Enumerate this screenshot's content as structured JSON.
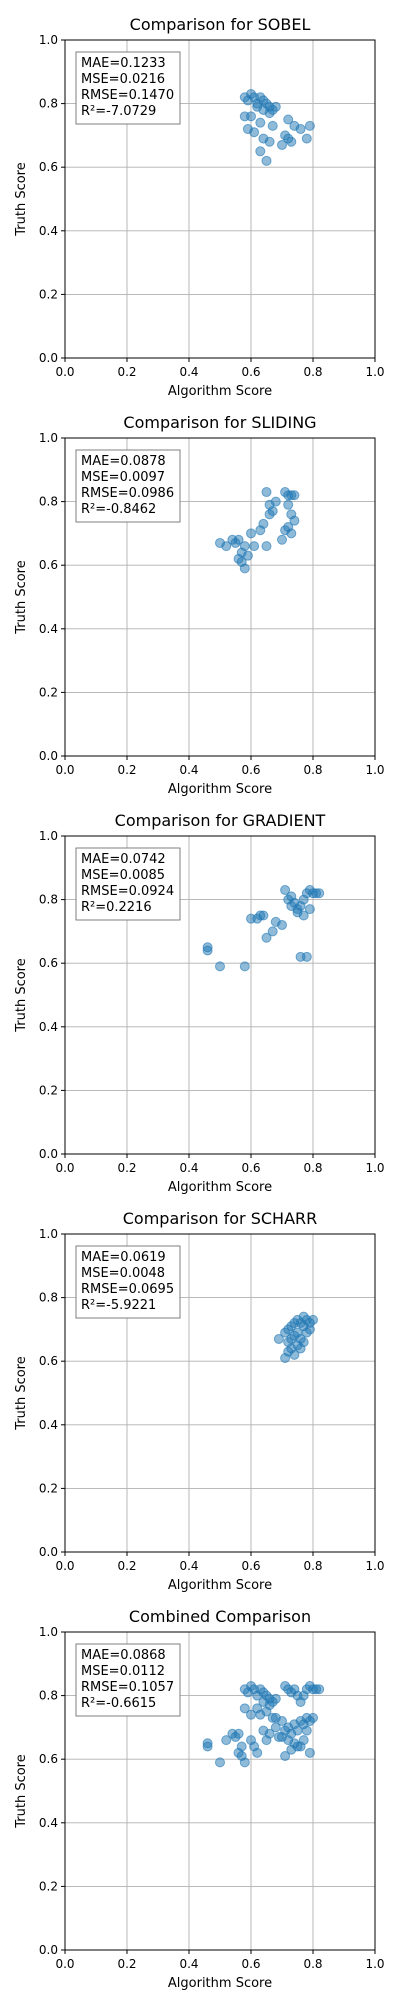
{
  "chart_data": [
    {
      "type": "scatter",
      "title": "Comparison for SOBEL",
      "xlabel": "Algorithm Score",
      "ylabel": "Truth Score",
      "xlim": [
        0,
        1
      ],
      "ylim": [
        0,
        1
      ],
      "xticks": [
        "0.0",
        "0.2",
        "0.4",
        "0.6",
        "0.8",
        "1.0"
      ],
      "yticks": [
        "0.0",
        "0.2",
        "0.4",
        "0.6",
        "0.8",
        "1.0"
      ],
      "grid": true,
      "stats": [
        "MAE=0.1233",
        "MSE=0.0216",
        "RMSE=0.1470",
        "R²=-7.0729"
      ],
      "x": [
        0.58,
        0.59,
        0.6,
        0.61,
        0.62,
        0.63,
        0.64,
        0.65,
        0.66,
        0.67,
        0.68,
        0.62,
        0.64,
        0.66,
        0.58,
        0.6,
        0.63,
        0.67,
        0.59,
        0.61,
        0.64,
        0.66,
        0.72,
        0.74,
        0.76,
        0.79,
        0.71,
        0.73,
        0.7,
        0.72,
        0.78,
        0.63,
        0.65
      ],
      "y": [
        0.82,
        0.81,
        0.83,
        0.82,
        0.8,
        0.82,
        0.81,
        0.8,
        0.79,
        0.78,
        0.79,
        0.79,
        0.78,
        0.77,
        0.76,
        0.76,
        0.74,
        0.73,
        0.72,
        0.71,
        0.69,
        0.68,
        0.75,
        0.73,
        0.72,
        0.73,
        0.7,
        0.68,
        0.67,
        0.69,
        0.69,
        0.65,
        0.62
      ]
    },
    {
      "type": "scatter",
      "title": "Comparison for SLIDING",
      "xlabel": "Algorithm Score",
      "ylabel": "Truth Score",
      "xlim": [
        0,
        1
      ],
      "ylim": [
        0,
        1
      ],
      "xticks": [
        "0.0",
        "0.2",
        "0.4",
        "0.6",
        "0.8",
        "1.0"
      ],
      "yticks": [
        "0.0",
        "0.2",
        "0.4",
        "0.6",
        "0.8",
        "1.0"
      ],
      "grid": true,
      "stats": [
        "MAE=0.0878",
        "MSE=0.0097",
        "RMSE=0.0986",
        "R²=-0.8462"
      ],
      "x": [
        0.5,
        0.52,
        0.54,
        0.55,
        0.56,
        0.57,
        0.58,
        0.56,
        0.59,
        0.61,
        0.58,
        0.57,
        0.6,
        0.63,
        0.64,
        0.66,
        0.67,
        0.66,
        0.68,
        0.65,
        0.65,
        0.71,
        0.72,
        0.73,
        0.74,
        0.72,
        0.73,
        0.74,
        0.71,
        0.73,
        0.72,
        0.7
      ],
      "y": [
        0.67,
        0.66,
        0.68,
        0.67,
        0.68,
        0.64,
        0.66,
        0.62,
        0.63,
        0.66,
        0.59,
        0.61,
        0.7,
        0.71,
        0.73,
        0.76,
        0.77,
        0.79,
        0.8,
        0.83,
        0.66,
        0.83,
        0.82,
        0.82,
        0.82,
        0.79,
        0.76,
        0.74,
        0.71,
        0.7,
        0.72,
        0.68
      ]
    },
    {
      "type": "scatter",
      "title": "Comparison for GRADIENT",
      "xlabel": "Algorithm Score",
      "ylabel": "Truth Score",
      "xlim": [
        0,
        1
      ],
      "ylim": [
        0,
        1
      ],
      "xticks": [
        "0.0",
        "0.2",
        "0.4",
        "0.6",
        "0.8",
        "1.0"
      ],
      "yticks": [
        "0.0",
        "0.2",
        "0.4",
        "0.6",
        "0.8",
        "1.0"
      ],
      "grid": true,
      "stats": [
        "MAE=0.0742",
        "MSE=0.0085",
        "RMSE=0.0924",
        "R²=0.2216"
      ],
      "x": [
        0.46,
        0.46,
        0.5,
        0.58,
        0.6,
        0.62,
        0.63,
        0.64,
        0.65,
        0.67,
        0.68,
        0.7,
        0.71,
        0.72,
        0.73,
        0.74,
        0.75,
        0.76,
        0.77,
        0.78,
        0.79,
        0.8,
        0.81,
        0.82,
        0.73,
        0.75,
        0.77,
        0.79,
        0.76,
        0.78
      ],
      "y": [
        0.65,
        0.64,
        0.59,
        0.59,
        0.74,
        0.74,
        0.75,
        0.75,
        0.68,
        0.7,
        0.73,
        0.72,
        0.83,
        0.8,
        0.81,
        0.79,
        0.77,
        0.78,
        0.8,
        0.82,
        0.83,
        0.82,
        0.82,
        0.82,
        0.78,
        0.76,
        0.75,
        0.77,
        0.62,
        0.62
      ]
    },
    {
      "type": "scatter",
      "title": "Comparison for SCHARR",
      "xlabel": "Algorithm Score",
      "ylabel": "Truth Score",
      "xlim": [
        0,
        1
      ],
      "ylim": [
        0,
        1
      ],
      "xticks": [
        "0.0",
        "0.2",
        "0.4",
        "0.6",
        "0.8",
        "1.0"
      ],
      "yticks": [
        "0.0",
        "0.2",
        "0.4",
        "0.6",
        "0.8",
        "1.0"
      ],
      "grid": true,
      "stats": [
        "MAE=0.0619",
        "MSE=0.0048",
        "RMSE=0.0695",
        "R²=-5.9221"
      ],
      "x": [
        0.69,
        0.71,
        0.72,
        0.73,
        0.74,
        0.75,
        0.76,
        0.77,
        0.78,
        0.79,
        0.8,
        0.72,
        0.74,
        0.76,
        0.78,
        0.73,
        0.75,
        0.77,
        0.71,
        0.74,
        0.76,
        0.79,
        0.72,
        0.75,
        0.73,
        0.77
      ],
      "y": [
        0.67,
        0.69,
        0.7,
        0.71,
        0.72,
        0.73,
        0.72,
        0.71,
        0.73,
        0.72,
        0.73,
        0.66,
        0.68,
        0.67,
        0.69,
        0.64,
        0.65,
        0.66,
        0.61,
        0.62,
        0.64,
        0.7,
        0.63,
        0.69,
        0.67,
        0.74
      ]
    },
    {
      "type": "scatter",
      "title": "Combined Comparison",
      "xlabel": "Algorithm Score",
      "ylabel": "Truth Score",
      "xlim": [
        0,
        1
      ],
      "ylim": [
        0,
        1
      ],
      "xticks": [
        "0.0",
        "0.2",
        "0.4",
        "0.6",
        "0.8",
        "1.0"
      ],
      "yticks": [
        "0.0",
        "0.2",
        "0.4",
        "0.6",
        "0.8",
        "1.0"
      ],
      "grid": true,
      "stats": [
        "MAE=0.0868",
        "MSE=0.0112",
        "RMSE=0.1057",
        "R²=-0.6615"
      ],
      "x": [
        0.46,
        0.46,
        0.5,
        0.52,
        0.54,
        0.55,
        0.56,
        0.57,
        0.58,
        0.58,
        0.59,
        0.6,
        0.6,
        0.61,
        0.62,
        0.63,
        0.64,
        0.65,
        0.66,
        0.67,
        0.68,
        0.69,
        0.7,
        0.71,
        0.72,
        0.73,
        0.74,
        0.75,
        0.76,
        0.77,
        0.78,
        0.79,
        0.8,
        0.81,
        0.82,
        0.58,
        0.62,
        0.64,
        0.66,
        0.68,
        0.72,
        0.74,
        0.76,
        0.78,
        0.8,
        0.56,
        0.6,
        0.63,
        0.65,
        0.67,
        0.71,
        0.73,
        0.75,
        0.77,
        0.79,
        0.57,
        0.61,
        0.64,
        0.66,
        0.7,
        0.72,
        0.74,
        0.76,
        0.78,
        0.62,
        0.65,
        0.68,
        0.71,
        0.73,
        0.75,
        0.77,
        0.79
      ],
      "y": [
        0.65,
        0.64,
        0.59,
        0.66,
        0.68,
        0.67,
        0.68,
        0.64,
        0.59,
        0.82,
        0.81,
        0.83,
        0.74,
        0.82,
        0.8,
        0.82,
        0.81,
        0.8,
        0.79,
        0.78,
        0.79,
        0.67,
        0.72,
        0.83,
        0.82,
        0.81,
        0.82,
        0.8,
        0.78,
        0.8,
        0.82,
        0.83,
        0.82,
        0.82,
        0.82,
        0.76,
        0.76,
        0.78,
        0.77,
        0.73,
        0.7,
        0.71,
        0.72,
        0.73,
        0.73,
        0.62,
        0.66,
        0.74,
        0.75,
        0.73,
        0.69,
        0.68,
        0.69,
        0.71,
        0.72,
        0.61,
        0.64,
        0.69,
        0.68,
        0.67,
        0.66,
        0.65,
        0.64,
        0.69,
        0.62,
        0.66,
        0.7,
        0.61,
        0.63,
        0.64,
        0.66,
        0.62
      ]
    }
  ]
}
